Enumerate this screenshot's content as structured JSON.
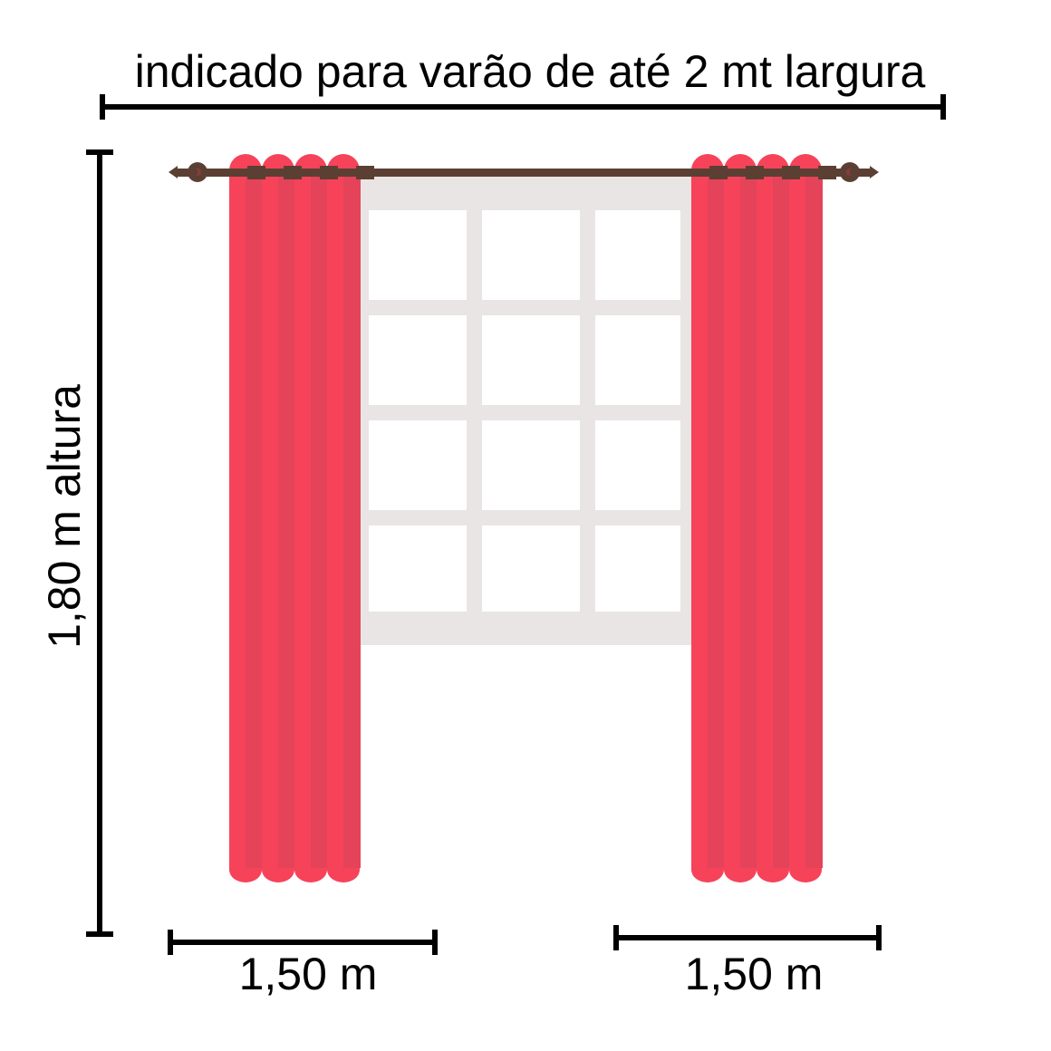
{
  "labels": {
    "width_rod": "indicado para varão de até 2 mt largura",
    "height": "1,80 m altura",
    "left_panel_width": "1,50 m",
    "right_panel_width": "1,50 m"
  },
  "colors": {
    "curtain_light": "#f6435a",
    "curtain_dark": "#e4435a",
    "rod": "#5c3f33",
    "window_frame": "#e9e5e4",
    "window_glass": "#ffffff",
    "dimension_line": "#000000"
  }
}
